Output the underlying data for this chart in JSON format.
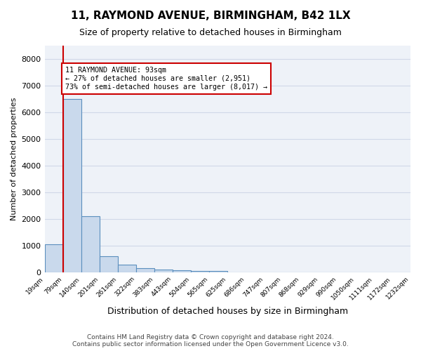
{
  "title1": "11, RAYMOND AVENUE, BIRMINGHAM, B42 1LX",
  "title2": "Size of property relative to detached houses in Birmingham",
  "xlabel": "Distribution of detached houses by size in Birmingham",
  "ylabel": "Number of detached properties",
  "footnote": "Contains HM Land Registry data © Crown copyright and database right 2024.\nContains public sector information licensed under the Open Government Licence v3.0.",
  "tick_labels": [
    "19sqm",
    "79sqm",
    "140sqm",
    "201sqm",
    "261sqm",
    "322sqm",
    "383sqm",
    "443sqm",
    "504sqm",
    "565sqm",
    "625sqm",
    "686sqm",
    "747sqm",
    "807sqm",
    "868sqm",
    "929sqm",
    "990sqm",
    "1050sqm",
    "1111sqm",
    "1172sqm",
    "1232sqm"
  ],
  "bar_values": [
    1050,
    6500,
    2100,
    600,
    280,
    150,
    100,
    65,
    55,
    50,
    0,
    0,
    0,
    0,
    0,
    0,
    0,
    0,
    0,
    0
  ],
  "bar_color": "#c9d9ec",
  "bar_edge_color": "#5b8fbe",
  "grid_color": "#d0d8e8",
  "background_color": "#eef2f8",
  "property_bin_index": 1,
  "red_line_color": "#cc0000",
  "annotation_text": "11 RAYMOND AVENUE: 93sqm\n← 27% of detached houses are smaller (2,951)\n73% of semi-detached houses are larger (8,017) →",
  "annotation_box_color": "#cc0000",
  "ylim": [
    0,
    8500
  ],
  "yticks": [
    0,
    1000,
    2000,
    3000,
    4000,
    5000,
    6000,
    7000,
    8000
  ]
}
